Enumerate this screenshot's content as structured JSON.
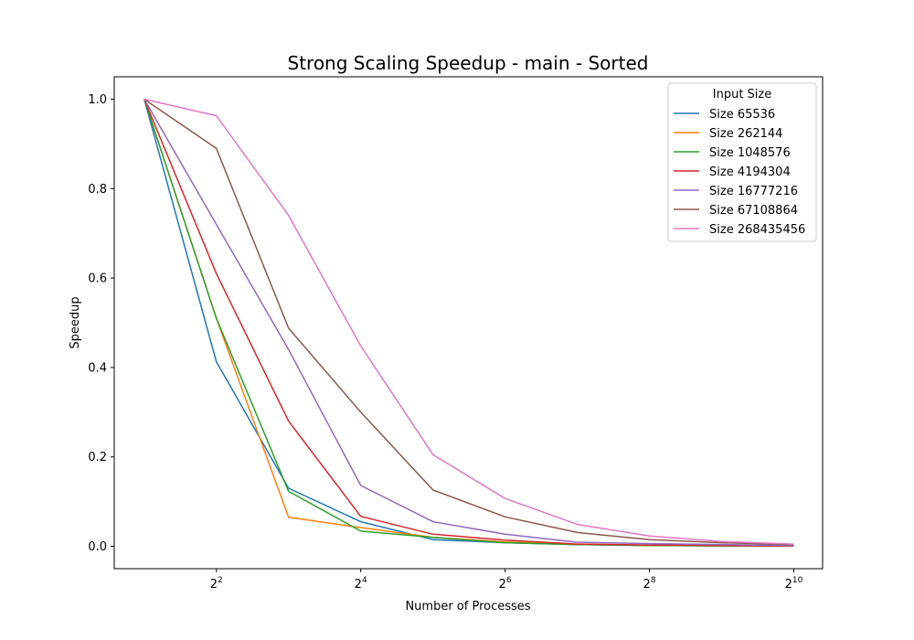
{
  "chart_data": {
    "type": "line",
    "title": "Strong Scaling Speedup - main - Sorted",
    "xlabel": "Number of Processes",
    "ylabel": "Speedup",
    "x_scale": "log2",
    "x": [
      2,
      4,
      8,
      16,
      32,
      64,
      128,
      256,
      512,
      1024
    ],
    "xlim": [
      1.5,
      1350
    ],
    "ylim": [
      -0.05,
      1.05
    ],
    "x_ticks": [
      {
        "value": 4,
        "base": "2",
        "exp": "2"
      },
      {
        "value": 16,
        "base": "2",
        "exp": "4"
      },
      {
        "value": 64,
        "base": "2",
        "exp": "6"
      },
      {
        "value": 256,
        "base": "2",
        "exp": "8"
      },
      {
        "value": 1024,
        "base": "2",
        "exp": "10"
      }
    ],
    "y_ticks": [
      {
        "value": 0.0,
        "label": "0.0"
      },
      {
        "value": 0.2,
        "label": "0.2"
      },
      {
        "value": 0.4,
        "label": "0.4"
      },
      {
        "value": 0.6,
        "label": "0.6"
      },
      {
        "value": 0.8,
        "label": "0.8"
      },
      {
        "value": 1.0,
        "label": "1.0"
      }
    ],
    "grid": false,
    "legend": {
      "title": "Input Size",
      "placement": "top-right"
    },
    "series": [
      {
        "name": "Size 65536",
        "color": "#1f77b4",
        "values": [
          1.0,
          0.413,
          0.13,
          0.055,
          0.015,
          0.008,
          0.004,
          0.002,
          0.001,
          0.001
        ]
      },
      {
        "name": "Size 262144",
        "color": "#ff7f0e",
        "values": [
          1.0,
          0.51,
          0.065,
          0.042,
          0.02,
          0.01,
          0.004,
          0.002,
          0.001,
          0.001
        ]
      },
      {
        "name": "Size 1048576",
        "color": "#2ca02c",
        "values": [
          1.0,
          0.51,
          0.123,
          0.034,
          0.02,
          0.008,
          0.004,
          0.002,
          0.001,
          0.001
        ]
      },
      {
        "name": "Size 4194304",
        "color": "#d62728",
        "values": [
          1.0,
          0.61,
          0.28,
          0.067,
          0.027,
          0.014,
          0.005,
          0.003,
          0.002,
          0.001
        ]
      },
      {
        "name": "Size 16777216",
        "color": "#9467bd",
        "values": [
          1.0,
          0.72,
          0.44,
          0.136,
          0.055,
          0.027,
          0.009,
          0.006,
          0.004,
          0.002
        ]
      },
      {
        "name": "Size 67108864",
        "color": "#8c564b",
        "values": [
          1.0,
          0.89,
          0.488,
          0.3,
          0.126,
          0.066,
          0.031,
          0.015,
          0.008,
          0.004
        ]
      },
      {
        "name": "Size 268435456",
        "color": "#e377c2",
        "values": [
          1.0,
          0.963,
          0.74,
          0.448,
          0.205,
          0.107,
          0.049,
          0.023,
          0.011,
          0.005
        ]
      }
    ]
  }
}
